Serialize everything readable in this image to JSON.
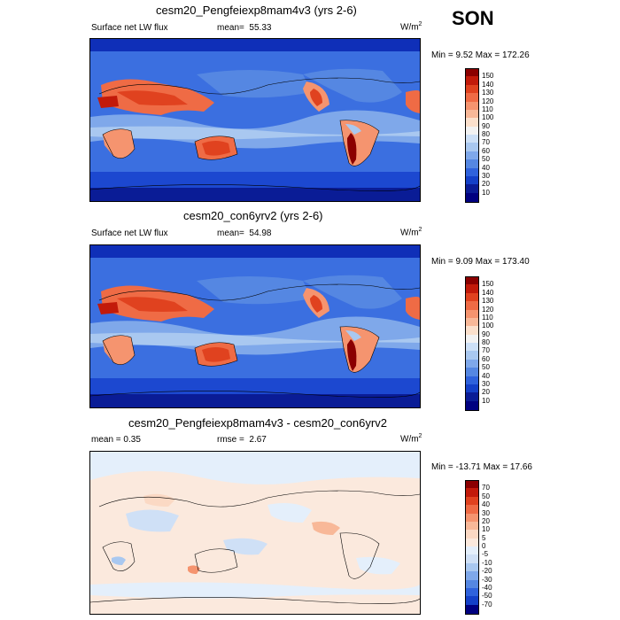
{
  "season": "SON",
  "panels": [
    {
      "title": "cesm20_Pengfeiexp8mam4v3 (yrs 2-6)",
      "left_label": "Surface net LW flux",
      "center_prefix": "mean=",
      "center_value": "55.33",
      "units": "W/m",
      "units_sup": "2",
      "minmax": "Min =   9.52 Max = 172.26",
      "colorbar": [
        "150",
        "140",
        "130",
        "120",
        "110",
        "100",
        "90",
        "80",
        "70",
        "60",
        "50",
        "40",
        "30",
        "20",
        "10"
      ],
      "kind": "abs"
    },
    {
      "title": "cesm20_con6yrv2 (yrs 2-6)",
      "left_label": "Surface net LW flux",
      "center_prefix": "mean=",
      "center_value": "54.98",
      "units": "W/m",
      "units_sup": "2",
      "minmax": "Min =   9.09 Max = 173.40",
      "colorbar": [
        "150",
        "140",
        "130",
        "120",
        "110",
        "100",
        "90",
        "80",
        "70",
        "60",
        "50",
        "40",
        "30",
        "20",
        "10"
      ],
      "kind": "abs"
    },
    {
      "title": "cesm20_Pengfeiexp8mam4v3 - cesm20_con6yrv2",
      "left_label": "mean =   0.35",
      "center_prefix": "rmse =",
      "center_value": "2.67",
      "units": "W/m",
      "units_sup": "2",
      "minmax": "Min = -13.71 Max =  17.66",
      "colorbar": [
        "70",
        "50",
        "40",
        "30",
        "20",
        "10",
        "5",
        "0",
        "-5",
        "-10",
        "-20",
        "-30",
        "-40",
        "-50",
        "-70"
      ],
      "kind": "diff"
    }
  ],
  "colors": {
    "abs_scale": [
      "#8b0000",
      "#c21a0a",
      "#e0421f",
      "#ef6b45",
      "#f5946f",
      "#f8b898",
      "#fbe0cc",
      "#f2f2f2",
      "#cde0f7",
      "#a9c8f0",
      "#7fa8ea",
      "#5587e2",
      "#2f62dc",
      "#1440c8",
      "#0a1c96",
      "#000080"
    ],
    "diff_scale": [
      "#8b0000",
      "#c21a0a",
      "#e0421f",
      "#ef6b45",
      "#f5946f",
      "#f8b898",
      "#fbd9c4",
      "#fbe9dd",
      "#e4effb",
      "#cfe0f6",
      "#a9c8f0",
      "#7fa8ea",
      "#5587e2",
      "#2f62dc",
      "#1440c8",
      "#000080"
    ]
  },
  "chart_data": [
    {
      "type": "heatmap",
      "title": "cesm20_Pengfeiexp8mam4v3 (yrs 2-6)",
      "mean": 55.33,
      "min": 9.52,
      "max": 172.26,
      "levels": [
        10,
        20,
        30,
        40,
        50,
        60,
        70,
        80,
        90,
        100,
        110,
        120,
        130,
        140,
        150
      ],
      "units": "W/m2"
    },
    {
      "type": "heatmap",
      "title": "cesm20_con6yrv2 (yrs 2-6)",
      "mean": 54.98,
      "min": 9.09,
      "max": 173.4,
      "levels": [
        10,
        20,
        30,
        40,
        50,
        60,
        70,
        80,
        90,
        100,
        110,
        120,
        130,
        140,
        150
      ],
      "units": "W/m2"
    },
    {
      "type": "heatmap",
      "title": "cesm20_Pengfeiexp8mam4v3 - cesm20_con6yrv2",
      "mean": 0.35,
      "rmse": 2.67,
      "min": -13.71,
      "max": 17.66,
      "levels": [
        -70,
        -50,
        -40,
        -30,
        -20,
        -10,
        -5,
        0,
        5,
        10,
        20,
        30,
        40,
        50,
        70
      ],
      "units": "W/m2"
    }
  ]
}
